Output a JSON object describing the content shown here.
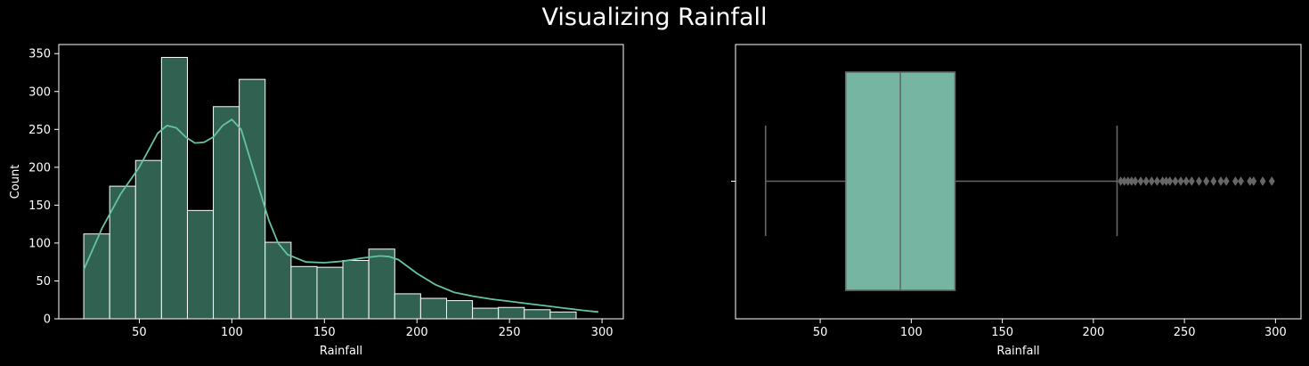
{
  "title": "Visualizing Rainfall",
  "chart_data": [
    {
      "type": "histogram",
      "xlabel": "Rainfall",
      "ylabel": "Count",
      "xlim": [
        6.5,
        311.5
      ],
      "ylim": [
        0,
        362
      ],
      "xticks": [
        50,
        100,
        150,
        200,
        250,
        300
      ],
      "yticks": [
        0,
        50,
        100,
        150,
        200,
        250,
        300,
        350
      ],
      "bin_start": 20,
      "bin_width": 14,
      "counts": [
        112,
        175,
        209,
        345,
        143,
        280,
        316,
        101,
        69,
        68,
        77,
        92,
        33,
        27,
        24,
        14,
        15,
        12,
        9
      ],
      "bar_color": "#316151",
      "bar_edge_color": "#ffffff",
      "kde": {
        "color": "#66c2a5",
        "x": [
          20,
          30,
          40,
          50,
          60,
          65,
          70,
          75,
          80,
          85,
          90,
          95,
          100,
          105,
          110,
          115,
          120,
          125,
          130,
          140,
          150,
          160,
          170,
          180,
          185,
          190,
          200,
          210,
          220,
          230,
          240,
          250,
          260,
          270,
          280,
          290,
          298
        ],
        "y": [
          65,
          120,
          165,
          200,
          245,
          255,
          252,
          240,
          232,
          233,
          240,
          255,
          263,
          250,
          210,
          170,
          130,
          100,
          85,
          75,
          74,
          76,
          80,
          83,
          82,
          78,
          60,
          45,
          35,
          30,
          26,
          23,
          20,
          17,
          14,
          11,
          9
        ]
      }
    },
    {
      "type": "box",
      "xlabel": "Rainfall",
      "xlim": [
        3.5,
        314
      ],
      "xticks": [
        50,
        100,
        150,
        200,
        250,
        300
      ],
      "whisker_low": 20,
      "q1": 64,
      "median": 94,
      "q3": 124,
      "whisker_high": 213,
      "box_color": "#75b5a1",
      "line_color": "#666666",
      "outliers": [
        215,
        217,
        219,
        221,
        223,
        226,
        229,
        232,
        235,
        238,
        240,
        242,
        245,
        248,
        251,
        254,
        258,
        262,
        266,
        270,
        273,
        278,
        281,
        286,
        288,
        293,
        298
      ]
    }
  ]
}
